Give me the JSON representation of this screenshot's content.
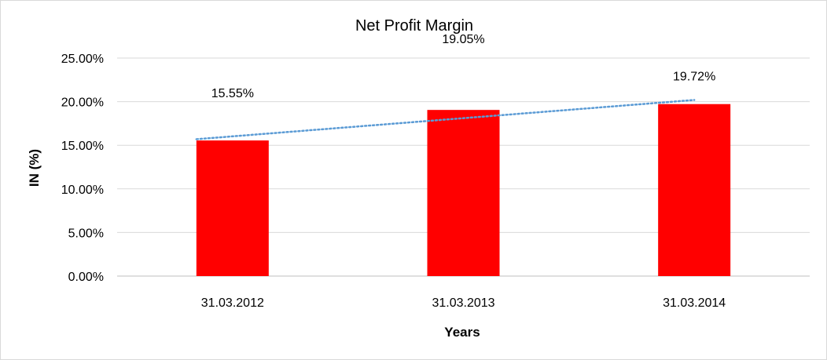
{
  "chart_data": {
    "type": "bar",
    "title": "Net Profit Margin",
    "xlabel": "Years",
    "ylabel": "IN (%)",
    "categories": [
      "31.03.2012",
      "31.03.2013",
      "31.03.2014"
    ],
    "series": [
      {
        "values": [
          15.55,
          19.05,
          19.72
        ],
        "data_labels": [
          "15.55%",
          "19.05%",
          "19.72%"
        ],
        "color": "#ff0000"
      }
    ],
    "trendline": {
      "type": "linear",
      "style": "dotted",
      "color": "#5b9bd5"
    },
    "ylim": [
      0,
      25
    ],
    "yticks": [
      "0.00%",
      "5.00%",
      "10.00%",
      "15.00%",
      "20.00%",
      "25.00%"
    ],
    "grid": true,
    "legend": "none"
  }
}
